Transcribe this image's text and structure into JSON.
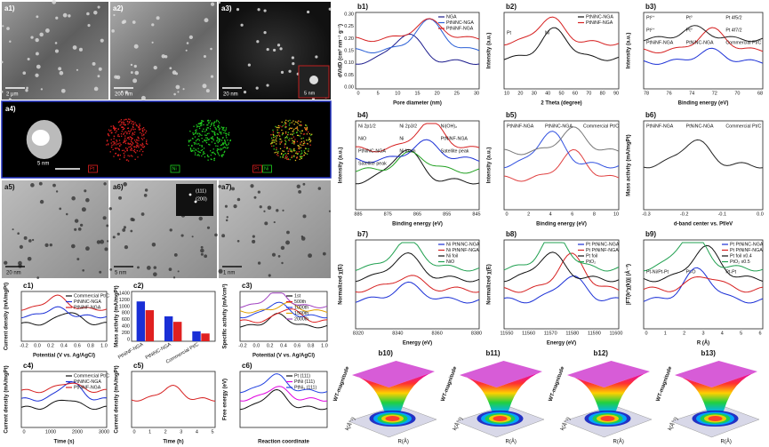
{
  "panels": [
    {
      "label": "a1)",
      "scale_bar": "2 μm"
    },
    {
      "label": "a2)",
      "scale_bar": "200 nm"
    },
    {
      "label": "a3)",
      "scale_bar": "20 nm",
      "inset_scale_bar": "5 nm"
    },
    {
      "label": "a4)",
      "scale_bar": "5 nm",
      "map_labels": [
        "Pt",
        "Ni",
        "Pt",
        "Ni"
      ]
    },
    {
      "label": "a5)",
      "scale_bar": "20 nm"
    },
    {
      "label": "a6)",
      "scale_bar": "5 nm",
      "inset_texts": [
        "(111)",
        "(200)"
      ]
    },
    {
      "label": "a7)",
      "scale_bar": "1 nm"
    },
    {
      "label": "b1)",
      "ylabel": "dV/dD (cm³ nm⁻¹ g⁻¹)",
      "xlabel": "Pore diameter (nm)",
      "xticks": [
        "0",
        "5",
        "10",
        "15",
        "20",
        "25",
        "30"
      ],
      "yticks": [
        "0.00",
        "0.05",
        "0.10",
        "0.15",
        "0.20",
        "0.25",
        "0.30"
      ],
      "legend": [
        "NGA",
        "PtNiNC-NGA",
        "PtNiNF-NGA"
      ]
    },
    {
      "label": "b2)",
      "ylabel": "Intensity (a.u.)",
      "xlabel": "2 Theta (degree)",
      "xticks": [
        "10",
        "20",
        "30",
        "40",
        "50",
        "60",
        "70",
        "80",
        "90"
      ],
      "legend": [
        "PtNiNC-NGA",
        "PtNiNF-NGA"
      ],
      "annotations": [
        "Pt",
        "Ni"
      ]
    },
    {
      "label": "b3)",
      "ylabel": "Intensity (a.u.)",
      "xlabel": "Binding energy (eV)",
      "xticks": [
        "78",
        "76",
        "74",
        "72",
        "70",
        "68"
      ],
      "annotations": [
        "Pt²⁺",
        "Pt⁰",
        "Pt 4f5/2",
        "Pt²⁺",
        "Pt⁰",
        "Pt 4f7/2",
        "PtNiNF-NGA",
        "PtNiNC-NGA",
        "Commercial Pt/C"
      ]
    },
    {
      "label": "b4)",
      "ylabel": "Intensity (a.u.)",
      "xlabel": "Binding energy (eV)",
      "xticks": [
        "885",
        "875",
        "865",
        "855",
        "845"
      ],
      "annotations": [
        "Ni 2p1/2",
        "Ni 2p3/2",
        "Ni(OH)₂",
        "NiO",
        "Ni",
        "PtNiNF-NGA",
        "PtNiNC-NGA",
        "Ni foam",
        "Satellite peak",
        "Satellite peak"
      ]
    },
    {
      "label": "b5)",
      "ylabel": "Intensity (a.u.)",
      "xlabel": "Binding energy (eV)",
      "xticks": [
        "0",
        "2",
        "4",
        "6",
        "8",
        "10"
      ],
      "annotations": [
        "PtNiNF-NGA",
        "PtNiNC-NGA",
        "Commercial Pt/C"
      ]
    },
    {
      "label": "b6)",
      "ylabel": "Mass activity (mA/mgPt)",
      "xlabel": "d-band center vs. Pf/eV",
      "xticks": [
        "-0.3",
        "-0.2",
        "-0.1",
        "0.0"
      ],
      "annotations": [
        "PtNiNF-NGA",
        "PtNiNC-NGA",
        "Commercial Pt/C"
      ]
    },
    {
      "label": "b7)",
      "ylabel": "Normalized χ(E)",
      "xlabel": "Energy (eV)",
      "xticks": [
        "8320",
        "8340",
        "8360",
        "8380"
      ],
      "legend": [
        "Ni PtNiNC-NGA",
        "Ni PtNiNF-NGA",
        "Ni foil",
        "NiO"
      ]
    },
    {
      "label": "b8)",
      "ylabel": "Normalized χ(E)",
      "xlabel": "Energy (eV)",
      "xticks": [
        "11550",
        "11560",
        "11570",
        "11580",
        "11590",
        "11600"
      ],
      "legend": [
        "Pt PtNiNC-NGA",
        "Pt PtNiNF-NGA",
        "Pt foil",
        "PtO₂"
      ]
    },
    {
      "label": "b9)",
      "ylabel": "|FT(k²χ(k))| (Å⁻³)",
      "xlabel": "R (Å)",
      "xticks": [
        "0",
        "1",
        "2",
        "3",
        "4",
        "5",
        "6"
      ],
      "legend": [
        "Pt PtNiNC-NGA",
        "Pt PtNiNF-NGA",
        "Pt foil x0.4",
        "PtO₂ x0.5"
      ],
      "annotations": [
        "Pt-Ni/Pt-Pt",
        "Pt-O",
        "Pt-Pt"
      ]
    },
    {
      "label": "b10)",
      "zlabel": "WT-magnitude",
      "klabel": "k(Å⁻¹)",
      "rlabel": "R(Å)"
    },
    {
      "label": "b11)",
      "zlabel": "WT-magnitude",
      "klabel": "k(Å⁻¹)",
      "rlabel": "R(Å)"
    },
    {
      "label": "b12)",
      "zlabel": "WT-magnitude",
      "klabel": "k(Å⁻¹)",
      "rlabel": "R(Å)"
    },
    {
      "label": "b13)",
      "zlabel": "WT-magnitude",
      "klabel": "k(Å⁻¹)",
      "rlabel": "R(Å)"
    },
    {
      "label": "c1)",
      "ylabel": "Current density (mA/mgPt)",
      "xlabel": "Potential (V vs. Ag/AgCl)",
      "xticks": [
        "-0.2",
        "0.0",
        "0.2",
        "0.4",
        "0.6",
        "0.8",
        "1.0"
      ],
      "legend": [
        "Commercial Pt/C",
        "PtNiNC-NGA",
        "PtNiNF-NGA"
      ]
    },
    {
      "label": "c2)",
      "ylabel": "Mass activity (mA/mgPt)",
      "yticks": [
        "0",
        "200",
        "400",
        "600",
        "800",
        "1000",
        "1200",
        "1400"
      ],
      "categories": [
        "PtNiNF-NGA",
        "PtNiNC-NGA",
        "Commercial Pt/C"
      ]
    },
    {
      "label": "c3)",
      "ylabel": "Specific activity (mA/cm²)",
      "xlabel": "Potential (V vs. Ag/AgCl)",
      "xticks": [
        "-0.2",
        "0.0",
        "0.2",
        "0.4",
        "0.6",
        "0.8",
        "1.0"
      ],
      "legend": [
        "1st",
        "500th",
        "1000th",
        "1500th",
        "2000th"
      ]
    },
    {
      "label": "c4)",
      "ylabel": "Current density (mA/mgPt)",
      "xlabel": "Time (s)",
      "xticks": [
        "0",
        "1000",
        "2000",
        "3000"
      ],
      "legend": [
        "Commercial Pt/C",
        "PtNiNC-NGA",
        "PtNiNF-NGA"
      ]
    },
    {
      "label": "c5)",
      "ylabel": "Current density (mA/mgPt)",
      "xlabel": "Time (h)",
      "xticks": [
        "0",
        "1",
        "2",
        "3",
        "4",
        "5"
      ]
    },
    {
      "label": "c6)",
      "ylabel": "Free energy (eV)",
      "xlabel": "Reaction coordinate",
      "legend": [
        "Pt (111)",
        "PtNi (111)",
        "PtNi₃ (111)"
      ]
    }
  ]
}
